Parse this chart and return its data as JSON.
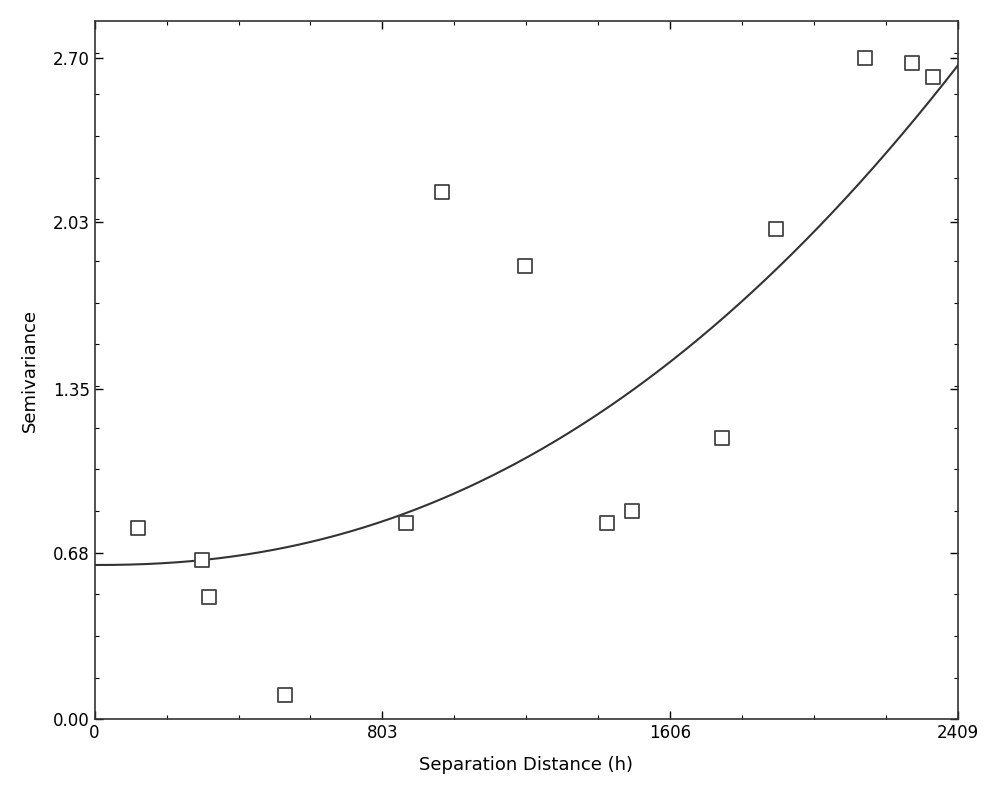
{
  "scatter_x": [
    120,
    300,
    320,
    530,
    870,
    970,
    1200,
    1430,
    1500,
    1750,
    1900,
    2150,
    2280,
    2340
  ],
  "scatter_y": [
    0.78,
    0.65,
    0.5,
    0.1,
    0.8,
    2.15,
    1.85,
    0.8,
    0.85,
    1.15,
    2.0,
    2.7,
    2.68,
    2.62
  ],
  "C0": 0.63,
  "C1": 2.08,
  "power": 1.8,
  "scale": 3200,
  "xlabel": "Separation Distance (h)",
  "ylabel": "Semivariance",
  "xlim": [
    0,
    2409
  ],
  "ylim": [
    0.0,
    2.85
  ],
  "yticks": [
    0.0,
    0.68,
    1.35,
    2.03,
    2.7
  ],
  "xticks": [
    0,
    803,
    1606,
    2409
  ],
  "background_color": "#ffffff",
  "scatter_facecolor": "white",
  "scatter_edgecolor": "#444444",
  "curve_color": "#333333",
  "xlabel_fontsize": 13,
  "ylabel_fontsize": 13,
  "tick_fontsize": 12
}
